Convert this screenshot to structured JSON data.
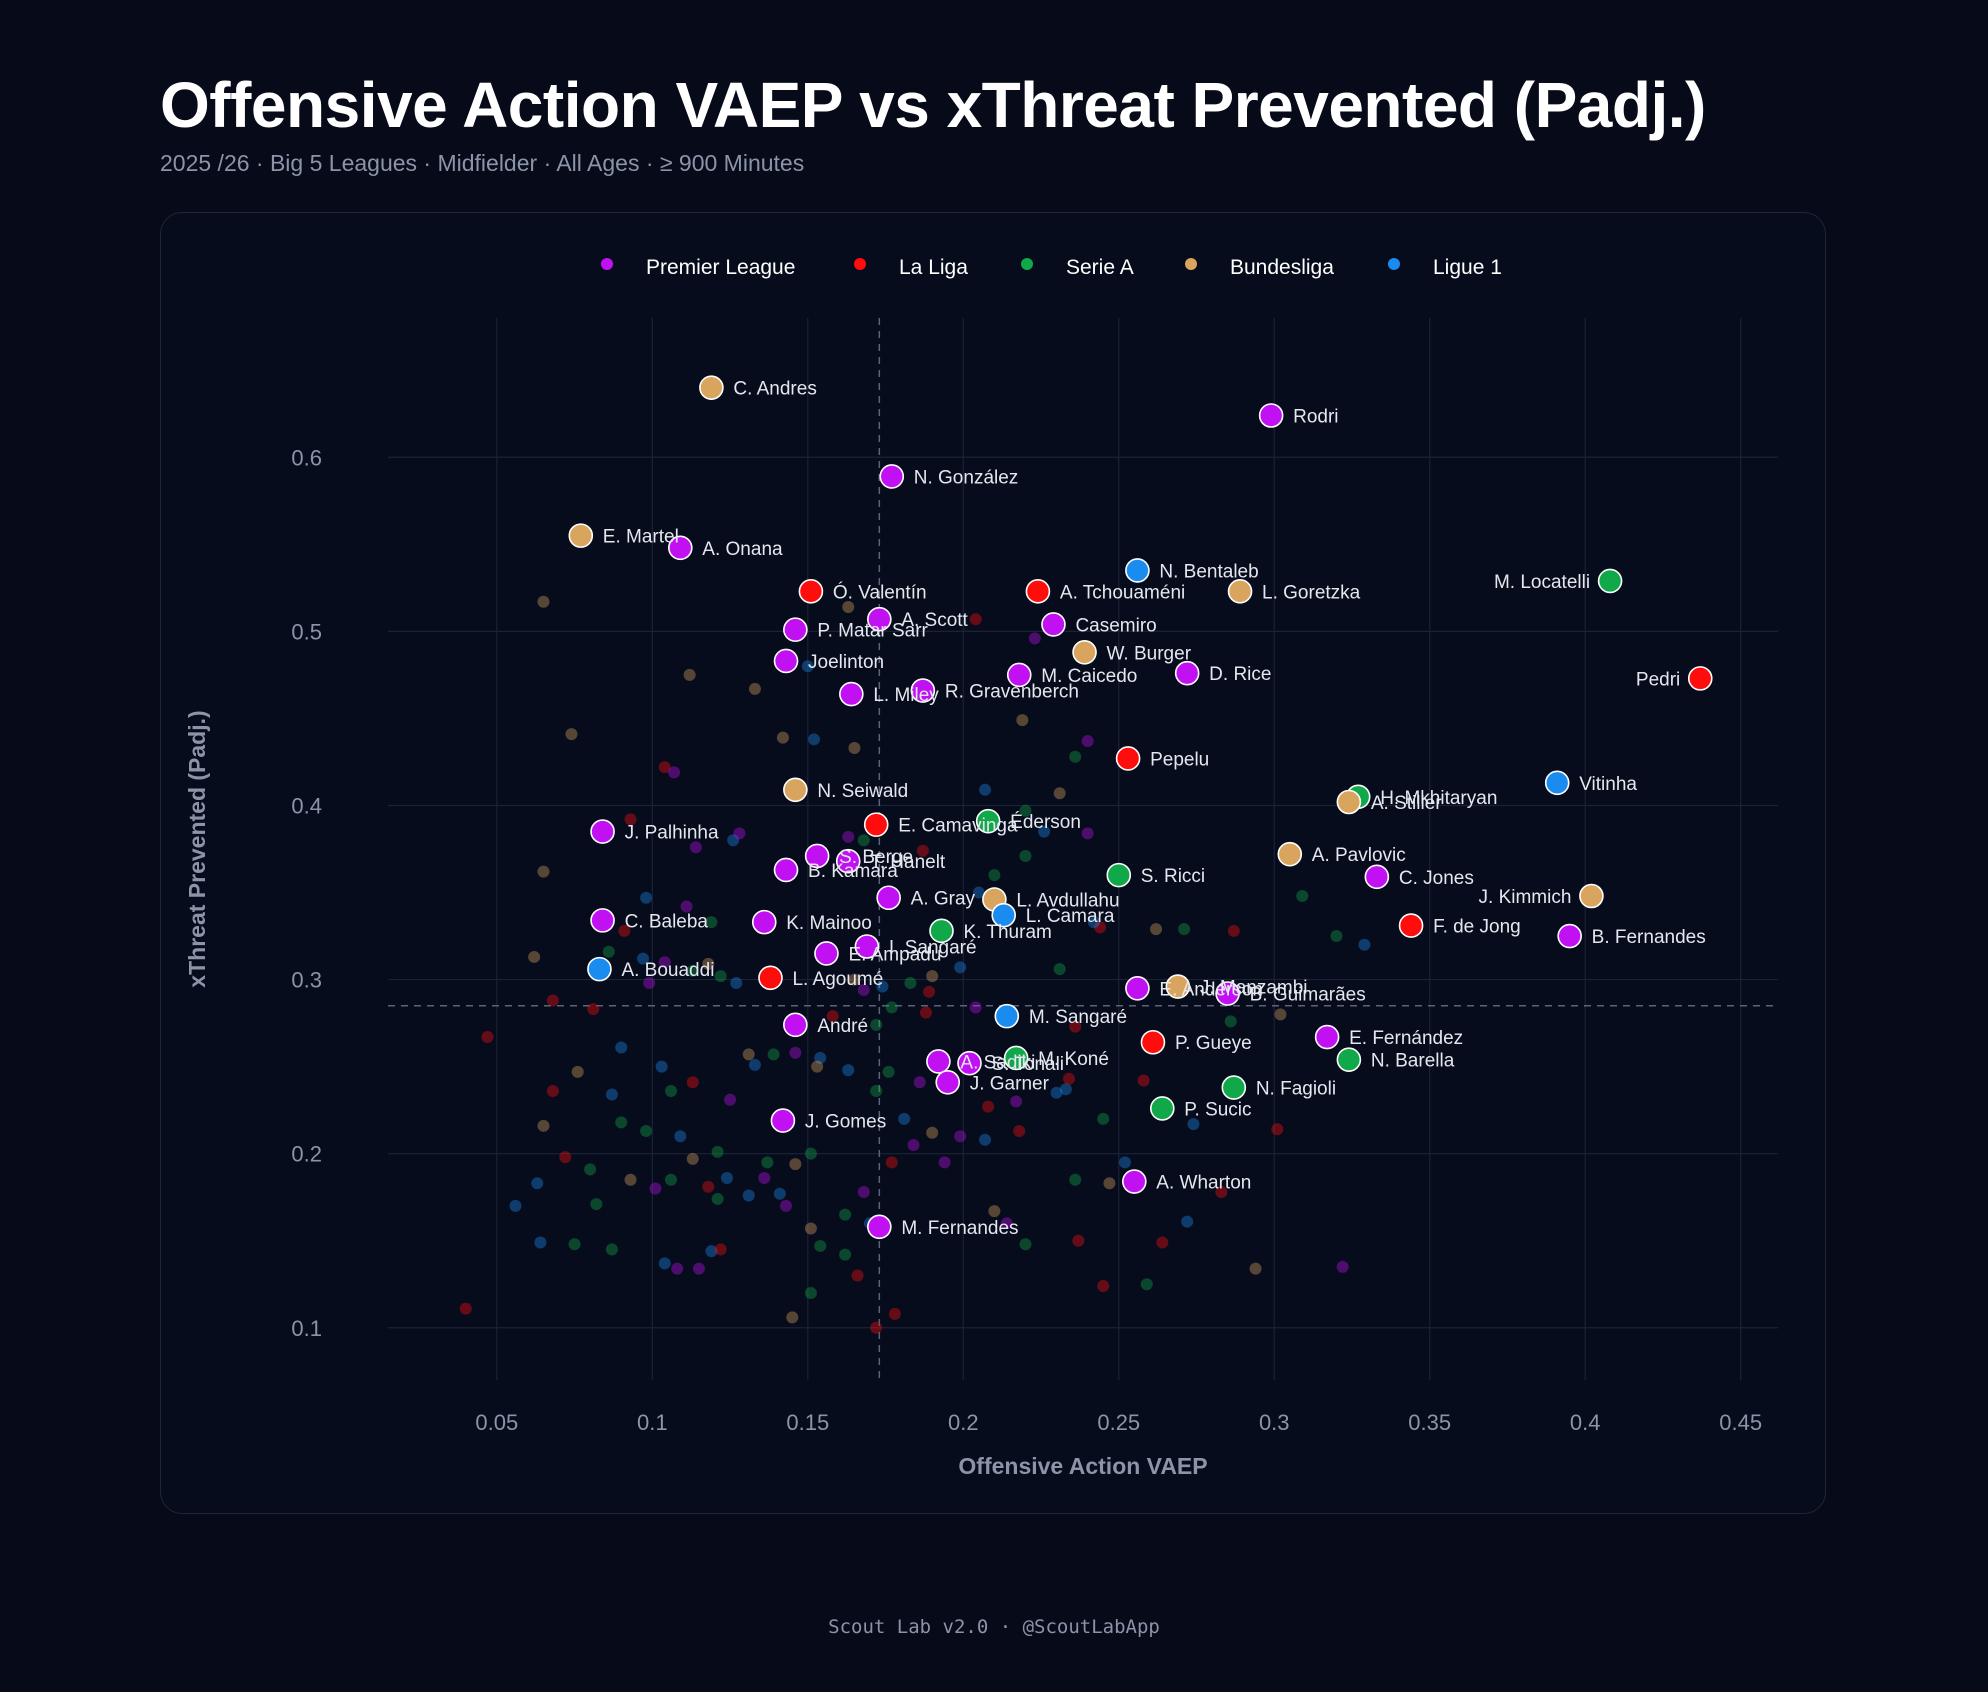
{
  "header": {
    "title": "Offensive Action VAEP vs xThreat Prevented (Padj.)",
    "subtitle": "2025 /26  · Big 5 Leagues  · Midfielder   · All Ages  · ≥ 900  Minutes"
  },
  "footer": {
    "text": "Scout Lab v2.0 · @ScoutLabApp"
  },
  "chart_data": {
    "type": "scatter",
    "xlabel": "Offensive Action VAEP",
    "ylabel": "xThreat Prevented (Padj.)",
    "xlim": [
      0.015,
      0.462
    ],
    "ylim": [
      0.07,
      0.68
    ],
    "xticks": [
      0.05,
      0.1,
      0.15,
      0.2,
      0.25,
      0.3,
      0.35,
      0.4,
      0.45
    ],
    "yticks": [
      0.1,
      0.2,
      0.3,
      0.4,
      0.5,
      0.6
    ],
    "xtick_labels": [
      "0.05",
      "0.1",
      "0.15",
      "0.2",
      "0.25",
      "0.3",
      "0.35",
      "0.4",
      "0.45"
    ],
    "ytick_labels": [
      "0.1",
      "0.2",
      "0.3",
      "0.4",
      "0.5",
      "0.6"
    ],
    "grid": true,
    "mean_lines": {
      "x": 0.173,
      "y": 0.285
    },
    "legend_position": "top-center",
    "leagues": [
      {
        "key": "PL",
        "name": "Premier League",
        "color": "#c111f3"
      },
      {
        "key": "LL",
        "name": "La Liga",
        "color": "#ff0d0d"
      },
      {
        "key": "SA",
        "name": "Serie A",
        "color": "#11a84a"
      },
      {
        "key": "BL",
        "name": "Bundesliga",
        "color": "#d9a55e"
      },
      {
        "key": "L1",
        "name": "Ligue 1",
        "color": "#1a8cf0"
      }
    ],
    "highlighted": [
      {
        "name": "C. Andres",
        "x": 0.119,
        "y": 0.64,
        "league": "BL"
      },
      {
        "name": "Rodri",
        "x": 0.299,
        "y": 0.624,
        "league": "PL"
      },
      {
        "name": "N. González",
        "x": 0.177,
        "y": 0.589,
        "league": "PL"
      },
      {
        "name": "E. Martel",
        "x": 0.077,
        "y": 0.555,
        "league": "BL"
      },
      {
        "name": "A. Onana",
        "x": 0.109,
        "y": 0.548,
        "league": "PL"
      },
      {
        "name": "N. Bentaleb",
        "x": 0.256,
        "y": 0.535,
        "league": "L1"
      },
      {
        "name": "M. Locatelli",
        "x": 0.408,
        "y": 0.529,
        "league": "SA",
        "label_side": "left"
      },
      {
        "name": "Ó. Valentín",
        "x": 0.151,
        "y": 0.523,
        "league": "LL"
      },
      {
        "name": "A. Tchouaméni",
        "x": 0.224,
        "y": 0.523,
        "league": "LL"
      },
      {
        "name": "L. Goretzka",
        "x": 0.289,
        "y": 0.523,
        "league": "BL"
      },
      {
        "name": "A. Scott",
        "x": 0.173,
        "y": 0.507,
        "league": "PL"
      },
      {
        "name": "Casemiro",
        "x": 0.229,
        "y": 0.504,
        "league": "PL"
      },
      {
        "name": "P. Matar Sarr",
        "x": 0.146,
        "y": 0.501,
        "league": "PL"
      },
      {
        "name": "W. Burger",
        "x": 0.239,
        "y": 0.488,
        "league": "BL"
      },
      {
        "name": "Joelinton",
        "x": 0.143,
        "y": 0.483,
        "league": "PL"
      },
      {
        "name": "D. Rice",
        "x": 0.272,
        "y": 0.476,
        "league": "PL"
      },
      {
        "name": "M. Caicedo",
        "x": 0.218,
        "y": 0.475,
        "league": "PL"
      },
      {
        "name": "Pedri",
        "x": 0.437,
        "y": 0.473,
        "league": "LL",
        "label_side": "left"
      },
      {
        "name": "R. Gravenberch",
        "x": 0.187,
        "y": 0.466,
        "league": "PL"
      },
      {
        "name": "L. Miley",
        "x": 0.164,
        "y": 0.464,
        "league": "PL"
      },
      {
        "name": "Pepelu",
        "x": 0.253,
        "y": 0.427,
        "league": "LL"
      },
      {
        "name": "Vitinha",
        "x": 0.391,
        "y": 0.413,
        "league": "L1"
      },
      {
        "name": "N. Seiwald",
        "x": 0.146,
        "y": 0.409,
        "league": "BL"
      },
      {
        "name": "H. Mkhitaryan",
        "x": 0.327,
        "y": 0.405,
        "league": "SA"
      },
      {
        "name": "A. Stiller",
        "x": 0.324,
        "y": 0.402,
        "league": "BL"
      },
      {
        "name": "Éderson",
        "x": 0.208,
        "y": 0.391,
        "league": "SA"
      },
      {
        "name": "E. Camavinga",
        "x": 0.172,
        "y": 0.389,
        "league": "LL"
      },
      {
        "name": "J. Palhinha",
        "x": 0.084,
        "y": 0.385,
        "league": "PL"
      },
      {
        "name": "A. Pavlovic",
        "x": 0.305,
        "y": 0.372,
        "league": "BL"
      },
      {
        "name": "S. Berge",
        "x": 0.153,
        "y": 0.371,
        "league": "PL"
      },
      {
        "name": "T. Hanelt",
        "x": 0.163,
        "y": 0.368,
        "league": "PL"
      },
      {
        "name": "B. Kamara",
        "x": 0.143,
        "y": 0.363,
        "league": "PL"
      },
      {
        "name": "S. Ricci",
        "x": 0.25,
        "y": 0.36,
        "league": "SA"
      },
      {
        "name": "C. Jones",
        "x": 0.333,
        "y": 0.359,
        "league": "PL"
      },
      {
        "name": "J. Kimmich",
        "x": 0.402,
        "y": 0.348,
        "league": "BL",
        "label_side": "left"
      },
      {
        "name": "A. Gray",
        "x": 0.176,
        "y": 0.347,
        "league": "PL"
      },
      {
        "name": "L. Avdullahu",
        "x": 0.21,
        "y": 0.346,
        "league": "BL"
      },
      {
        "name": "L. Camara",
        "x": 0.213,
        "y": 0.337,
        "league": "L1"
      },
      {
        "name": "C. Baleba",
        "x": 0.084,
        "y": 0.334,
        "league": "PL"
      },
      {
        "name": "K. Mainoo",
        "x": 0.136,
        "y": 0.333,
        "league": "PL"
      },
      {
        "name": "F. de Jong",
        "x": 0.344,
        "y": 0.331,
        "league": "LL"
      },
      {
        "name": "K. Thuram",
        "x": 0.193,
        "y": 0.328,
        "league": "SA"
      },
      {
        "name": "B. Fernandes",
        "x": 0.395,
        "y": 0.325,
        "league": "PL"
      },
      {
        "name": "I. Sangaré",
        "x": 0.169,
        "y": 0.319,
        "league": "PL"
      },
      {
        "name": "E. Ampadu",
        "x": 0.156,
        "y": 0.315,
        "league": "PL"
      },
      {
        "name": "A. Bouaddi",
        "x": 0.083,
        "y": 0.306,
        "league": "L1"
      },
      {
        "name": "L. Agoumé",
        "x": 0.138,
        "y": 0.301,
        "league": "LL"
      },
      {
        "name": "E. Anderson",
        "x": 0.256,
        "y": 0.295,
        "league": "PL"
      },
      {
        "name": "J. Manzambi",
        "x": 0.269,
        "y": 0.296,
        "league": "BL"
      },
      {
        "name": "B. Guimarães",
        "x": 0.285,
        "y": 0.292,
        "league": "PL"
      },
      {
        "name": "M. Sangaré",
        "x": 0.214,
        "y": 0.279,
        "league": "L1"
      },
      {
        "name": "André",
        "x": 0.146,
        "y": 0.274,
        "league": "PL"
      },
      {
        "name": "E. Fernández",
        "x": 0.317,
        "y": 0.267,
        "league": "PL"
      },
      {
        "name": "P. Gueye",
        "x": 0.261,
        "y": 0.264,
        "league": "LL"
      },
      {
        "name": "M. Koné",
        "x": 0.217,
        "y": 0.255,
        "league": "SA"
      },
      {
        "name": "N. Barella",
        "x": 0.324,
        "y": 0.254,
        "league": "SA"
      },
      {
        "name": "A. Sadiki",
        "x": 0.192,
        "y": 0.253,
        "league": "PL"
      },
      {
        "name": "S. Tonali",
        "x": 0.202,
        "y": 0.252,
        "league": "PL"
      },
      {
        "name": "J. Garner",
        "x": 0.195,
        "y": 0.241,
        "league": "PL"
      },
      {
        "name": "N. Fagioli",
        "x": 0.287,
        "y": 0.238,
        "league": "SA"
      },
      {
        "name": "P. Sucic",
        "x": 0.264,
        "y": 0.226,
        "league": "SA"
      },
      {
        "name": "J. Gomes",
        "x": 0.142,
        "y": 0.219,
        "league": "PL"
      },
      {
        "name": "A. Wharton",
        "x": 0.255,
        "y": 0.184,
        "league": "PL"
      },
      {
        "name": "M. Fernandes",
        "x": 0.173,
        "y": 0.158,
        "league": "PL"
      }
    ],
    "background_points": [
      [
        0.065,
        0.517,
        "BL"
      ],
      [
        0.074,
        0.441,
        "BL"
      ],
      [
        0.112,
        0.475,
        "BL"
      ],
      [
        0.133,
        0.467,
        "BL"
      ],
      [
        0.142,
        0.439,
        "BL"
      ],
      [
        0.165,
        0.433,
        "BL"
      ],
      [
        0.163,
        0.514,
        "BL"
      ],
      [
        0.104,
        0.422,
        "LL"
      ],
      [
        0.107,
        0.419,
        "PL"
      ],
      [
        0.093,
        0.392,
        "LL"
      ],
      [
        0.114,
        0.376,
        "PL"
      ],
      [
        0.126,
        0.38,
        "L1"
      ],
      [
        0.128,
        0.384,
        "PL"
      ],
      [
        0.065,
        0.362,
        "BL"
      ],
      [
        0.098,
        0.347,
        "L1"
      ],
      [
        0.111,
        0.342,
        "PL"
      ],
      [
        0.119,
        0.333,
        "SA"
      ],
      [
        0.091,
        0.328,
        "LL"
      ],
      [
        0.062,
        0.313,
        "BL"
      ],
      [
        0.086,
        0.316,
        "SA"
      ],
      [
        0.097,
        0.312,
        "L1"
      ],
      [
        0.104,
        0.31,
        "PL"
      ],
      [
        0.118,
        0.309,
        "BL"
      ],
      [
        0.113,
        0.305,
        "SA"
      ],
      [
        0.122,
        0.302,
        "SA"
      ],
      [
        0.099,
        0.298,
        "PL"
      ],
      [
        0.127,
        0.298,
        "L1"
      ],
      [
        0.068,
        0.288,
        "LL"
      ],
      [
        0.081,
        0.283,
        "LL"
      ],
      [
        0.047,
        0.267,
        "LL"
      ],
      [
        0.09,
        0.261,
        "L1"
      ],
      [
        0.103,
        0.25,
        "L1"
      ],
      [
        0.076,
        0.247,
        "BL"
      ],
      [
        0.068,
        0.236,
        "LL"
      ],
      [
        0.087,
        0.234,
        "L1"
      ],
      [
        0.106,
        0.236,
        "SA"
      ],
      [
        0.113,
        0.241,
        "LL"
      ],
      [
        0.125,
        0.231,
        "PL"
      ],
      [
        0.131,
        0.257,
        "BL"
      ],
      [
        0.133,
        0.251,
        "L1"
      ],
      [
        0.139,
        0.257,
        "SA"
      ],
      [
        0.146,
        0.258,
        "PL"
      ],
      [
        0.154,
        0.255,
        "L1"
      ],
      [
        0.158,
        0.279,
        "LL"
      ],
      [
        0.153,
        0.25,
        "BL"
      ],
      [
        0.065,
        0.216,
        "BL"
      ],
      [
        0.09,
        0.218,
        "SA"
      ],
      [
        0.098,
        0.213,
        "SA"
      ],
      [
        0.109,
        0.21,
        "L1"
      ],
      [
        0.113,
        0.197,
        "BL"
      ],
      [
        0.121,
        0.201,
        "SA"
      ],
      [
        0.124,
        0.186,
        "L1"
      ],
      [
        0.131,
        0.176,
        "L1"
      ],
      [
        0.136,
        0.186,
        "PL"
      ],
      [
        0.137,
        0.195,
        "SA"
      ],
      [
        0.146,
        0.194,
        "BL"
      ],
      [
        0.151,
        0.2,
        "SA"
      ],
      [
        0.143,
        0.17,
        "PL"
      ],
      [
        0.072,
        0.198,
        "LL"
      ],
      [
        0.08,
        0.191,
        "SA"
      ],
      [
        0.093,
        0.185,
        "BL"
      ],
      [
        0.101,
        0.18,
        "PL"
      ],
      [
        0.106,
        0.185,
        "SA"
      ],
      [
        0.118,
        0.181,
        "LL"
      ],
      [
        0.121,
        0.174,
        "SA"
      ],
      [
        0.141,
        0.177,
        "L1"
      ],
      [
        0.063,
        0.183,
        "L1"
      ],
      [
        0.056,
        0.17,
        "L1"
      ],
      [
        0.082,
        0.171,
        "SA"
      ],
      [
        0.064,
        0.149,
        "L1"
      ],
      [
        0.075,
        0.148,
        "SA"
      ],
      [
        0.087,
        0.145,
        "SA"
      ],
      [
        0.104,
        0.137,
        "L1"
      ],
      [
        0.108,
        0.134,
        "PL"
      ],
      [
        0.115,
        0.134,
        "PL"
      ],
      [
        0.119,
        0.144,
        "L1"
      ],
      [
        0.122,
        0.145,
        "LL"
      ],
      [
        0.151,
        0.157,
        "BL"
      ],
      [
        0.154,
        0.147,
        "SA"
      ],
      [
        0.162,
        0.142,
        "SA"
      ],
      [
        0.166,
        0.13,
        "LL"
      ],
      [
        0.151,
        0.12,
        "SA"
      ],
      [
        0.145,
        0.106,
        "BL"
      ],
      [
        0.04,
        0.111,
        "LL"
      ],
      [
        0.172,
        0.1,
        "LL"
      ],
      [
        0.178,
        0.108,
        "LL"
      ],
      [
        0.162,
        0.165,
        "SA"
      ],
      [
        0.17,
        0.16,
        "L1"
      ],
      [
        0.168,
        0.178,
        "PL"
      ],
      [
        0.177,
        0.195,
        "LL"
      ],
      [
        0.181,
        0.22,
        "L1"
      ],
      [
        0.184,
        0.205,
        "PL"
      ],
      [
        0.19,
        0.212,
        "BL"
      ],
      [
        0.194,
        0.195,
        "PL"
      ],
      [
        0.199,
        0.21,
        "PL"
      ],
      [
        0.207,
        0.208,
        "L1"
      ],
      [
        0.214,
        0.16,
        "PL"
      ],
      [
        0.21,
        0.167,
        "BL"
      ],
      [
        0.22,
        0.148,
        "SA"
      ],
      [
        0.237,
        0.15,
        "LL"
      ],
      [
        0.245,
        0.124,
        "LL"
      ],
      [
        0.259,
        0.125,
        "SA"
      ],
      [
        0.264,
        0.149,
        "LL"
      ],
      [
        0.272,
        0.161,
        "L1"
      ],
      [
        0.283,
        0.178,
        "LL"
      ],
      [
        0.294,
        0.134,
        "BL"
      ],
      [
        0.322,
        0.135,
        "PL"
      ],
      [
        0.301,
        0.214,
        "LL"
      ],
      [
        0.274,
        0.217,
        "L1"
      ],
      [
        0.252,
        0.195,
        "L1"
      ],
      [
        0.245,
        0.22,
        "SA"
      ],
      [
        0.236,
        0.185,
        "SA"
      ],
      [
        0.247,
        0.183,
        "BL"
      ],
      [
        0.23,
        0.235,
        "L1"
      ],
      [
        0.233,
        0.237,
        "L1"
      ],
      [
        0.218,
        0.213,
        "LL"
      ],
      [
        0.217,
        0.23,
        "PL"
      ],
      [
        0.208,
        0.227,
        "LL"
      ],
      [
        0.234,
        0.243,
        "LL"
      ],
      [
        0.258,
        0.242,
        "LL"
      ],
      [
        0.176,
        0.247,
        "SA"
      ],
      [
        0.172,
        0.236,
        "SA"
      ],
      [
        0.186,
        0.241,
        "PL"
      ],
      [
        0.163,
        0.248,
        "L1"
      ],
      [
        0.174,
        0.296,
        "L1"
      ],
      [
        0.177,
        0.284,
        "SA"
      ],
      [
        0.188,
        0.281,
        "LL"
      ],
      [
        0.189,
        0.293,
        "LL"
      ],
      [
        0.183,
        0.298,
        "SA"
      ],
      [
        0.19,
        0.302,
        "BL"
      ],
      [
        0.204,
        0.284,
        "PL"
      ],
      [
        0.199,
        0.307,
        "L1"
      ],
      [
        0.172,
        0.274,
        "SA"
      ],
      [
        0.168,
        0.294,
        "PL"
      ],
      [
        0.165,
        0.3,
        "BL"
      ],
      [
        0.231,
        0.306,
        "SA"
      ],
      [
        0.236,
        0.273,
        "LL"
      ],
      [
        0.244,
        0.33,
        "LL"
      ],
      [
        0.242,
        0.333,
        "L1"
      ],
      [
        0.262,
        0.329,
        "BL"
      ],
      [
        0.271,
        0.329,
        "SA"
      ],
      [
        0.287,
        0.328,
        "LL"
      ],
      [
        0.302,
        0.28,
        "BL"
      ],
      [
        0.286,
        0.276,
        "SA"
      ],
      [
        0.32,
        0.325,
        "SA"
      ],
      [
        0.309,
        0.348,
        "SA"
      ],
      [
        0.329,
        0.32,
        "L1"
      ],
      [
        0.22,
        0.371,
        "SA"
      ],
      [
        0.226,
        0.385,
        "L1"
      ],
      [
        0.231,
        0.407,
        "BL"
      ],
      [
        0.236,
        0.428,
        "SA"
      ],
      [
        0.24,
        0.437,
        "PL"
      ],
      [
        0.22,
        0.397,
        "SA"
      ],
      [
        0.207,
        0.409,
        "L1"
      ],
      [
        0.24,
        0.384,
        "PL"
      ],
      [
        0.219,
        0.449,
        "BL"
      ],
      [
        0.223,
        0.496,
        "PL"
      ],
      [
        0.204,
        0.507,
        "LL"
      ],
      [
        0.152,
        0.438,
        "L1"
      ],
      [
        0.15,
        0.48,
        "L1"
      ],
      [
        0.163,
        0.382,
        "PL"
      ],
      [
        0.168,
        0.38,
        "SA"
      ],
      [
        0.187,
        0.374,
        "LL"
      ],
      [
        0.21,
        0.36,
        "SA"
      ],
      [
        0.205,
        0.35,
        "L1"
      ]
    ]
  }
}
